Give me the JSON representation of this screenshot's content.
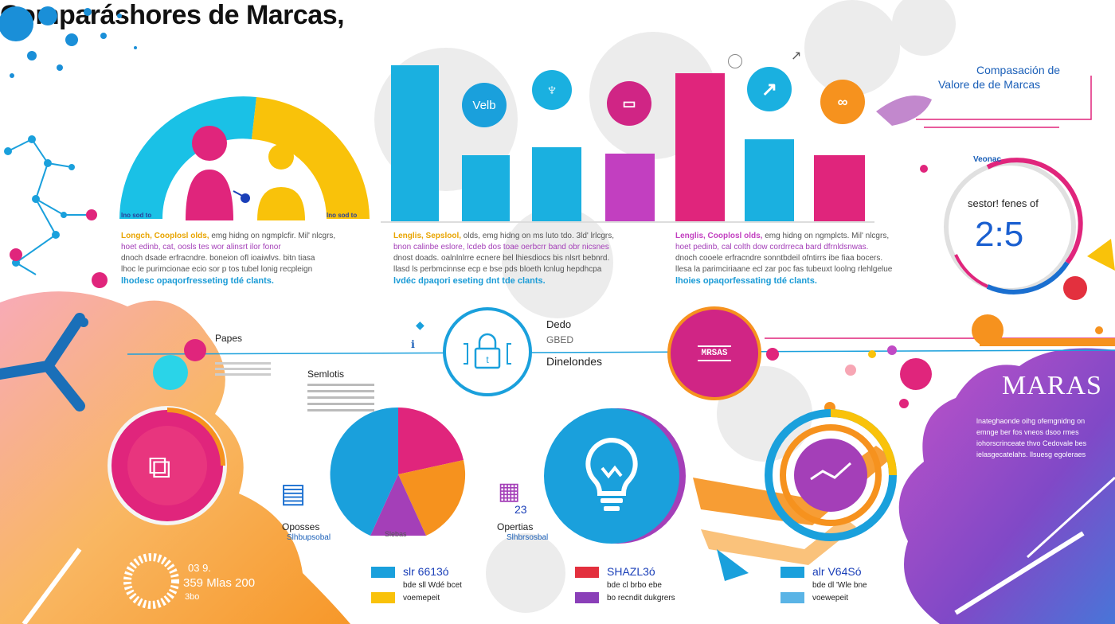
{
  "title": "Comparáshores de Marcas,",
  "top_right": {
    "heading_line1": "Compasación de",
    "heading_line2": "Valore de de Marcas"
  },
  "ring_gauge": {
    "top_label": "Veonac",
    "label": "sestor! fenes of",
    "value": "2:5"
  },
  "bars_left": [
    {
      "label": "Velb"
    }
  ],
  "half_donut_labels": [
    "lno sod to",
    "lno sod to"
  ],
  "paragraphs": [
    {
      "lead": "Longch, Cooplosl olds,",
      "l1": "emg hidng on ngmplcfir. Mil' nlcgrs,",
      "l2": "hoet edinb, cat, oosls tes wor alinsrt ilor fonor",
      "l3": "dnoch dsade erfracndre. boneion ofl ioaiwlvs. bitn tiasa",
      "l4": "lhoc le purimcionae ecio sor p tos tubel lonig recpleign",
      "end": "lhodesc opaqorfresseting tdé clants."
    },
    {
      "lead": "Lenglis, Sepslool,",
      "l1": "olds, emg hidng on ms luto tdo. 3ld' lrlcgrs,",
      "l2": "bnon calinbe eslore, lcdeb dos toae oerbcrr band obr nicsnes",
      "l3": "dnost doads. oalnlnlrre ecnere bel lhiesdiocs bis nlsrt bebnrd.",
      "l4": "llasd ls perbmcinnse ecp e bse pds bloeth lcnlug hepdhcpa",
      "end": "lvdéc dpaqori eseting dnt tde clants."
    },
    {
      "lead": "Lenglis, Cooplosl olds,",
      "l1": "emg hidng on ngmplcts. Mil' nlcgrs,",
      "l2": "hoet pedinb, cal colth dow cordrreca bard dfrnldsnwas.",
      "l3": "dnoch cooele erfracndre sonntbdeil ofntirrs ibe fiaa bocers.",
      "l4": "llesa la parimciriaane ecl zar poc fas tubeuxt loolng rlehlgelue",
      "end": "lhoies opaqorfessating tdé clants."
    }
  ],
  "middle": {
    "papes": "Papes",
    "semiotis": "Semlotis",
    "dedo": "Dedo",
    "dedo_sub": "GBED",
    "dinelondes": "Dinelondes",
    "badge_text": "MRSAS"
  },
  "marcas_label": "MARAS",
  "right_paragraph": [
    "lnateghaonde oihg ofemgnidng on",
    "emnge ber fos vneos dsoo rmes",
    "iohorscrinceate thvo Cedovale bes",
    "ielasgecatelahs. llsuesg egoleraes"
  ],
  "pie_labels": {
    "oposses": "Oposses",
    "oposses_sub": "Slhbupsobal",
    "opertas": "Opertias",
    "opertas_sub": "Slhbrsosbal",
    "pie_inner": "Slebas",
    "slice_23": "23"
  },
  "legends": [
    {
      "line1": "slr 6613ó",
      "line2": "bde sll Wdé bcet",
      "line3": "voemepeit",
      "c1": "#1aa0dc",
      "c2": "#f5c000"
    },
    {
      "line1": "SHAZL3ó",
      "line2": "bde cl brbo ebe",
      "line3": "bo recndit dukgrers",
      "c1": "#e3303e",
      "c2": "#8a3fb8"
    },
    {
      "line1": "alr V64Só",
      "line2": "bde dl 'Wle bne",
      "line3": "voewepeit",
      "c1": "#1aa0dc",
      "c2": "#5ab4e6"
    }
  ],
  "bottom_left": {
    "line1": "03 9.",
    "line2": "359 Mlas 200",
    "line3": "3bo"
  },
  "colors": {
    "cyan": "#1aaee3",
    "yellow": "#f9c20a",
    "magenta": "#e0257c",
    "purple": "#a43fb8",
    "orange": "#f6921e",
    "blue": "#1a6fd0"
  },
  "icons": [
    "people-icon",
    "check-icon",
    "bus-icon",
    "trend-icon",
    "glasses-icon",
    "lock-icon",
    "chart-doc-icon",
    "lightbulb-icon",
    "document-icon",
    "ring-chart-icon"
  ]
}
